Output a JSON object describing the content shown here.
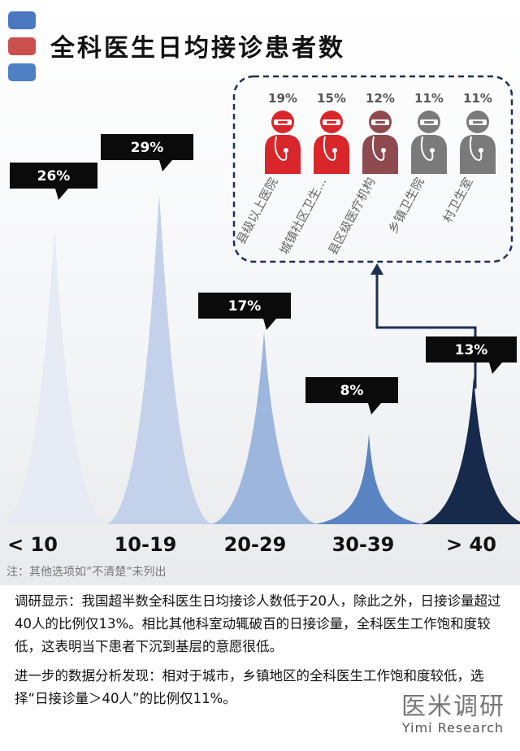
{
  "title": "全科医生日均接诊患者数",
  "legend_colors": [
    "#4a78c0",
    "#c9504d",
    "#4f80c4"
  ],
  "note": "注：其他选项如”不清楚”未列出",
  "paragraphs": [
    "调研显示：我国超半数全科医生日均接诊人数低于20人，除此之外，日接诊量超过40人的比例仅13%。相比其他科室动辄破百的日接诊量，全科医生工作饱和度较低，这表明当下患者下沉到基层的意愿很低。",
    "进一步的数据分析发现：相对于城市，乡镇地区的全科医生工作饱和度较低，选择“日接诊量＞40人”的比例仅11%。"
  ],
  "brand": {
    "cn": "医米调研",
    "en": "Yimi Research"
  },
  "chart_data": [
    {
      "type": "area",
      "title": "全科医生日均接诊患者数",
      "categories": [
        "< 10",
        "10-19",
        "20-29",
        "30-39",
        "> 40"
      ],
      "values": [
        26,
        29,
        17,
        8,
        13
      ],
      "value_labels": [
        "26%",
        "29%",
        "17%",
        "8%",
        "13%"
      ],
      "colors": [
        "#e6ebf4",
        "#c3d2ea",
        "#9db6de",
        "#5a83c1",
        "#172a4c"
      ]
    },
    {
      "type": "bar",
      "categories": [
        "县级以上医院",
        "城镇社区卫生...",
        "县区级医疗机构",
        "乡镇卫生院",
        "村卫生室"
      ],
      "values": [
        19,
        15,
        12,
        11,
        11
      ],
      "value_labels": [
        "19%",
        "15%",
        "12%",
        "11%",
        "11%"
      ],
      "colors": [
        "#d8262a",
        "#d8262a",
        "#8e4a4f",
        "#7a7a7a",
        "#7a7a7a"
      ]
    }
  ]
}
